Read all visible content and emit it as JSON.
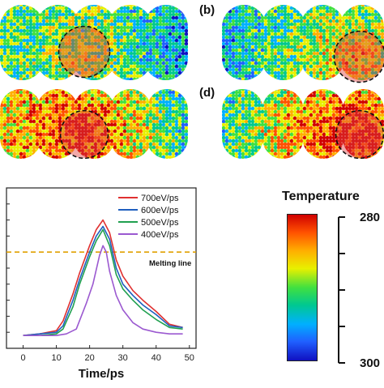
{
  "panels": [
    {
      "label": "",
      "pattern": "a"
    },
    {
      "label": "(b)",
      "pattern": "b"
    },
    {
      "label": "",
      "pattern": "c"
    },
    {
      "label": "(d)",
      "pattern": "d"
    }
  ],
  "chart_data": {
    "type": "line",
    "xlabel": "Time/ps",
    "ylabel": "",
    "xlim": [
      -5,
      52
    ],
    "ylim": [
      0,
      1.0
    ],
    "xticks": [
      0,
      10,
      20,
      30,
      40,
      50
    ],
    "threshold": {
      "label": "Melting line",
      "value": 0.6,
      "color": "#e0a000"
    },
    "series": [
      {
        "name": "700eV/ps",
        "color": "#e03030",
        "x": [
          0,
          5,
          10,
          12,
          15,
          17,
          20,
          22,
          24,
          26,
          28,
          30,
          33,
          36,
          40,
          44,
          48
        ],
        "y": [
          0.08,
          0.09,
          0.11,
          0.17,
          0.34,
          0.47,
          0.64,
          0.74,
          0.8,
          0.72,
          0.55,
          0.45,
          0.36,
          0.3,
          0.23,
          0.15,
          0.13
        ]
      },
      {
        "name": "600eV/ps",
        "color": "#1f5fbf",
        "x": [
          0,
          5,
          10,
          12,
          15,
          17,
          20,
          22,
          24,
          26,
          28,
          30,
          33,
          36,
          40,
          44,
          48
        ],
        "y": [
          0.08,
          0.09,
          0.1,
          0.14,
          0.3,
          0.43,
          0.6,
          0.7,
          0.76,
          0.68,
          0.5,
          0.4,
          0.33,
          0.27,
          0.21,
          0.14,
          0.13
        ]
      },
      {
        "name": "500eV/ps",
        "color": "#20a050",
        "x": [
          0,
          5,
          10,
          12,
          15,
          17,
          20,
          22,
          24,
          26,
          28,
          30,
          33,
          36,
          40,
          44,
          48
        ],
        "y": [
          0.08,
          0.08,
          0.09,
          0.12,
          0.26,
          0.4,
          0.57,
          0.67,
          0.74,
          0.64,
          0.46,
          0.37,
          0.3,
          0.24,
          0.18,
          0.13,
          0.12
        ]
      },
      {
        "name": "400eV/ps",
        "color": "#9b59d0",
        "x": [
          0,
          5,
          10,
          13,
          16,
          19,
          21,
          23,
          24,
          25,
          26,
          28,
          30,
          33,
          36,
          40,
          44,
          48
        ],
        "y": [
          0.08,
          0.08,
          0.08,
          0.09,
          0.12,
          0.28,
          0.4,
          0.58,
          0.64,
          0.6,
          0.48,
          0.33,
          0.24,
          0.16,
          0.12,
          0.1,
          0.09,
          0.09
        ]
      }
    ]
  },
  "colorbar": {
    "title": "Temperature",
    "max_label": "280",
    "min_label": "300",
    "colors": [
      "#d00000",
      "#ff5000",
      "#ffb000",
      "#e8f000",
      "#40e040",
      "#00c890",
      "#00b0ff",
      "#2060ff",
      "#1010c0"
    ]
  }
}
